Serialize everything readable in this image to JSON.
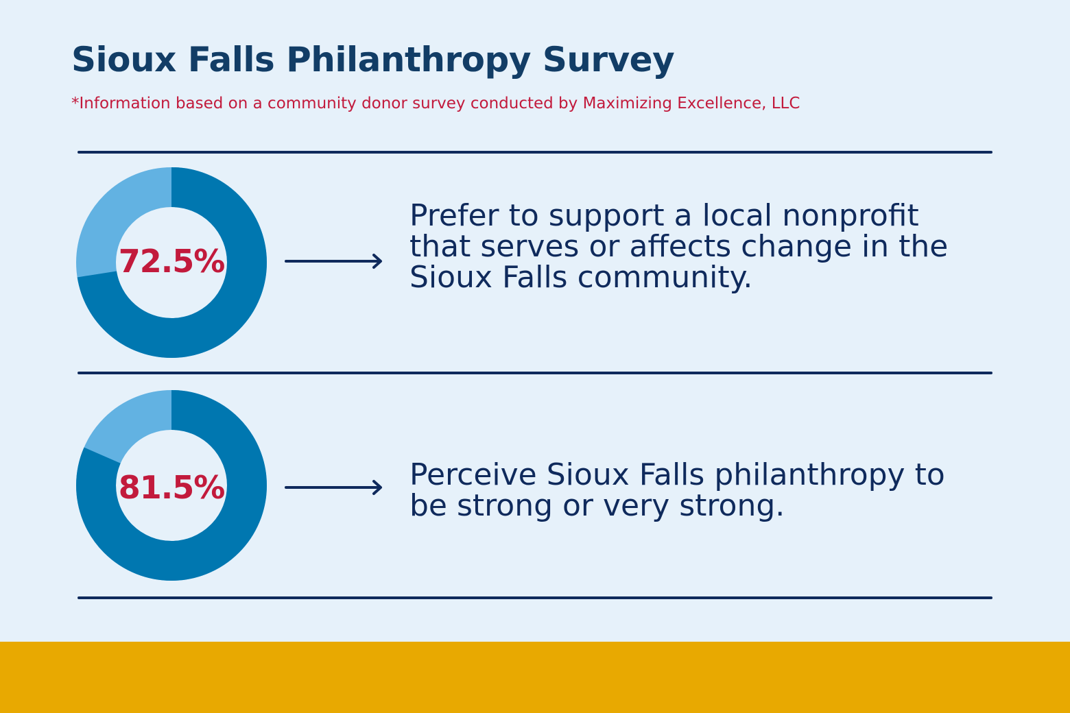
{
  "title": "Sioux Falls Philanthropy Survey",
  "subtitle": "*Information based on a community donor survey conducted by Maximizing Excellence, LLC",
  "colors": {
    "background": "#e6f1fa",
    "title": "#123d66",
    "accent_red": "#c21a3c",
    "donut_primary": "#0077b0",
    "donut_secondary": "#62b2e2",
    "navy": "#0f2a5c",
    "footer": "#e8a901"
  },
  "chart_data": [
    {
      "type": "pie",
      "variant": "donut",
      "value_percent": 72.5,
      "label": "72.5%",
      "description": "Prefer to support a local nonprofit that serves or affects change in the Sioux Falls community."
    },
    {
      "type": "pie",
      "variant": "donut",
      "value_percent": 81.5,
      "label": "81.5%",
      "description": "Perceive Sioux Falls philanthropy to be strong or very strong."
    }
  ]
}
